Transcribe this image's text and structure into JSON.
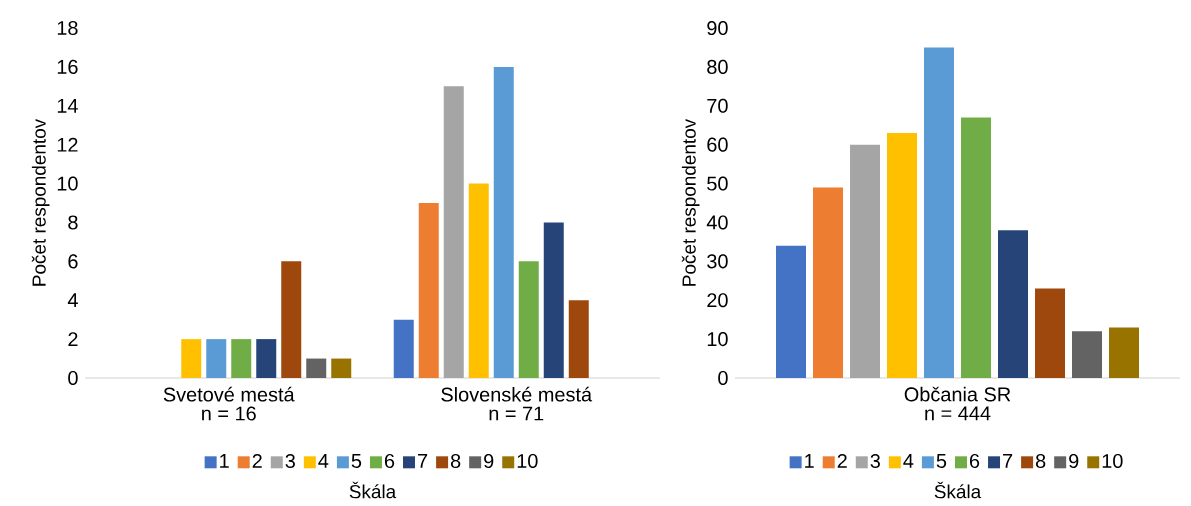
{
  "chart_data": [
    {
      "type": "bar",
      "categories": [
        "Svetové mestá",
        "Slovenské mestá"
      ],
      "annotations": [
        "n = 16",
        "n = 71"
      ],
      "ylabel": "Počet respondentov",
      "ylim": [
        0,
        18
      ],
      "yticks": [
        0,
        2,
        4,
        6,
        8,
        10,
        12,
        14,
        16,
        18
      ],
      "legend": "bottom",
      "legend_title": "Škála",
      "series": [
        {
          "name": "1",
          "color": "#4472c4",
          "values": [
            0,
            3
          ]
        },
        {
          "name": "2",
          "color": "#ed7d31",
          "values": [
            0,
            9
          ]
        },
        {
          "name": "3",
          "color": "#a5a5a5",
          "values": [
            0,
            15
          ]
        },
        {
          "name": "4",
          "color": "#ffc000",
          "values": [
            2,
            10
          ]
        },
        {
          "name": "5",
          "color": "#5b9bd5",
          "values": [
            2,
            16
          ]
        },
        {
          "name": "6",
          "color": "#70ad47",
          "values": [
            2,
            6
          ]
        },
        {
          "name": "7",
          "color": "#264478",
          "values": [
            2,
            8
          ]
        },
        {
          "name": "8",
          "color": "#9e480e",
          "values": [
            6,
            4
          ]
        },
        {
          "name": "9",
          "color": "#636363",
          "values": [
            1,
            0
          ]
        },
        {
          "name": "10",
          "color": "#997300",
          "values": [
            1,
            0
          ]
        }
      ]
    },
    {
      "type": "bar",
      "categories": [
        "Občania SR"
      ],
      "annotations": [
        "n = 444"
      ],
      "ylabel": "Počet respondentov",
      "ylim": [
        0,
        90
      ],
      "yticks": [
        0,
        10,
        20,
        30,
        40,
        50,
        60,
        70,
        80,
        90
      ],
      "legend": "bottom",
      "legend_title": "Škála",
      "series": [
        {
          "name": "1",
          "color": "#4472c4",
          "values": [
            34
          ]
        },
        {
          "name": "2",
          "color": "#ed7d31",
          "values": [
            49
          ]
        },
        {
          "name": "3",
          "color": "#a5a5a5",
          "values": [
            60
          ]
        },
        {
          "name": "4",
          "color": "#ffc000",
          "values": [
            63
          ]
        },
        {
          "name": "5",
          "color": "#5b9bd5",
          "values": [
            85
          ]
        },
        {
          "name": "6",
          "color": "#70ad47",
          "values": [
            67
          ]
        },
        {
          "name": "7",
          "color": "#264478",
          "values": [
            38
          ]
        },
        {
          "name": "8",
          "color": "#9e480e",
          "values": [
            23
          ]
        },
        {
          "name": "9",
          "color": "#636363",
          "values": [
            12
          ]
        },
        {
          "name": "10",
          "color": "#997300",
          "values": [
            13
          ]
        }
      ]
    }
  ]
}
